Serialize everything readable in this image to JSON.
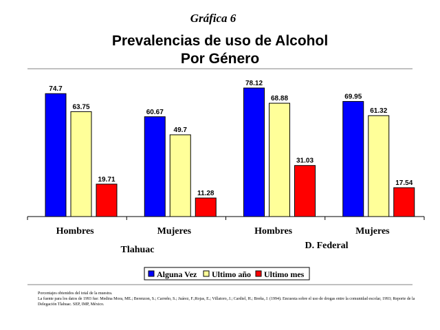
{
  "chart_label": "Gráfica 6",
  "chart_data": {
    "type": "bar",
    "title_line1": "Prevalencias de uso de Alcohol",
    "title_line2": "Por Género",
    "categories": [
      "Hombres",
      "Mujeres",
      "Hombres",
      "Mujeres"
    ],
    "groups": [
      "Tlahuac",
      "D. Federal"
    ],
    "series": [
      {
        "name": "Alguna Vez",
        "color": "#0000ff",
        "values": [
          74.7,
          60.67,
          78.12,
          69.95
        ],
        "labels": [
          "74.7",
          "60.67",
          "78.12",
          "69.95"
        ]
      },
      {
        "name": "Ultimo año",
        "color": "#ffff99",
        "values": [
          63.75,
          49.7,
          68.88,
          61.32
        ],
        "labels": [
          "63.75",
          "49.7",
          "68.88",
          "61.32"
        ]
      },
      {
        "name": "Ultimo mes",
        "color": "#ff0000",
        "values": [
          19.71,
          11.28,
          31.03,
          17.54
        ],
        "labels": [
          "19.71",
          "11.28",
          "31.03",
          "17.54"
        ]
      }
    ],
    "ylim": [
      0,
      80
    ],
    "grid": false,
    "legend_position": "bottom"
  },
  "notes": [
    "Porcentajes obtenidos del total de la muestra.",
    "La fuente para los datos de 1993 fue: Medina Mora, ME.; Berenzon, S.; Carreño, S.; Juárez, F.;Rojas, E.; Villatoro, J.; Cardiel, H.; Breña, J. (1994). Encuesta sobre el uso de drogas entre la comunidad escolar, 1993; Reporte de la Delegación Tlahuac. SEP, IMP, México."
  ]
}
